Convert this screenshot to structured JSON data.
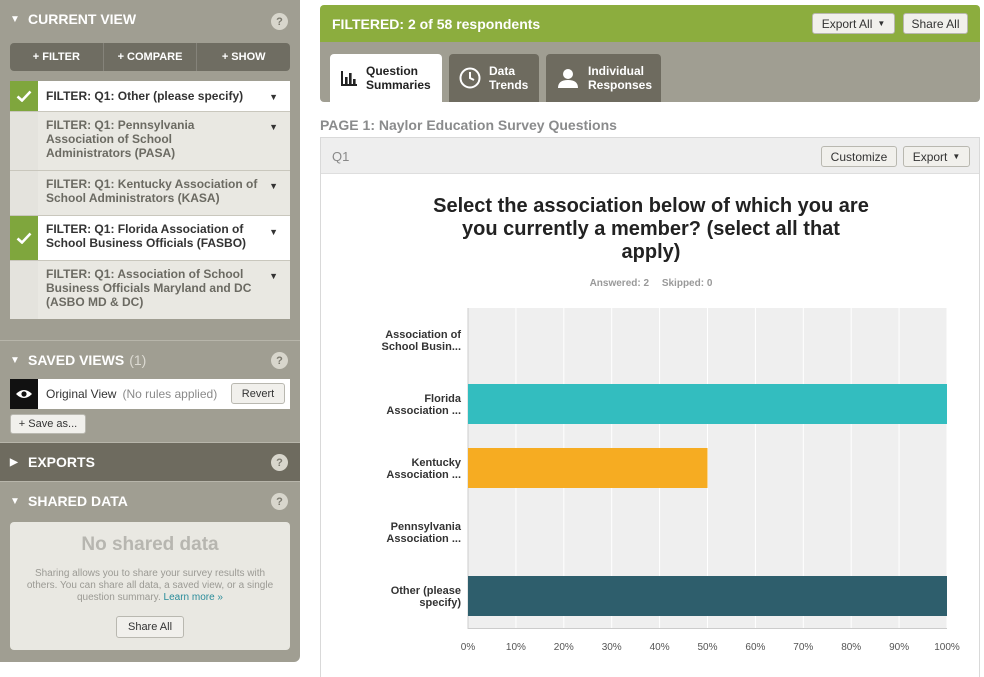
{
  "sidebar": {
    "current_view": {
      "title": "CURRENT VIEW",
      "buttons": [
        "+ FILTER",
        "+ COMPARE",
        "+ SHOW"
      ],
      "filters": [
        {
          "label": "FILTER: Q1: Other (please specify)",
          "active": true
        },
        {
          "label": "FILTER: Q1: Pennsylvania Association of School Administrators (PASA)",
          "active": false
        },
        {
          "label": "FILTER: Q1: Kentucky Association of School Administrators (KASA)",
          "active": false
        },
        {
          "label": "FILTER: Q1: Florida Association of School Business Officials (FASBO)",
          "active": true
        },
        {
          "label": "FILTER: Q1: Association of School Business Officials Maryland and DC (ASBO MD & DC)",
          "active": false
        }
      ]
    },
    "saved_views": {
      "title": "SAVED VIEWS",
      "count": "(1)",
      "view_name": "Original View",
      "view_rule": "(No rules applied)",
      "revert_label": "Revert",
      "save_as_label": "+ Save as..."
    },
    "exports": {
      "title": "EXPORTS"
    },
    "shared_data": {
      "title": "SHARED DATA",
      "empty_title": "No shared data",
      "description": "Sharing allows you to share your survey results with others. You can share all data, a saved view, or a single question summary.",
      "learn_more": "Learn more »",
      "share_all_label": "Share All"
    },
    "help_glyph": "?"
  },
  "topbar": {
    "title": "FILTERED: 2 of 58 respondents",
    "export_all": "Export All",
    "share_all": "Share All"
  },
  "tabs": [
    {
      "label_line1": "Question",
      "label_line2": "Summaries",
      "icon": "bar-chart-icon",
      "active": true
    },
    {
      "label_line1": "Data",
      "label_line2": "Trends",
      "icon": "clock-icon",
      "active": false
    },
    {
      "label_line1": "Individual",
      "label_line2": "Responses",
      "icon": "person-icon",
      "active": false
    }
  ],
  "page_title": "PAGE 1: Naylor Education Survey Questions",
  "question": {
    "number": "Q1",
    "customize": "Customize",
    "export": "Export",
    "title": "Select the association below of which you are you currently a member? (select all that apply)",
    "answered": "Answered: 2",
    "skipped": "Skipped: 0"
  },
  "chart_data": {
    "type": "bar",
    "orientation": "horizontal",
    "categories": [
      [
        "Association of",
        "School Busin..."
      ],
      [
        "Florida",
        "Association ..."
      ],
      [
        "Kentucky",
        "Association ..."
      ],
      [
        "Pennsylvania",
        "Association ..."
      ],
      [
        "Other (please",
        "specify)"
      ]
    ],
    "values": [
      0,
      100,
      50,
      0,
      100
    ],
    "colors": [
      "#33bdbf",
      "#33bdbf",
      "#f6ac22",
      "#33bdbf",
      "#2e5e6c"
    ],
    "xticks": [
      "0%",
      "10%",
      "20%",
      "30%",
      "40%",
      "50%",
      "60%",
      "70%",
      "80%",
      "90%",
      "100%"
    ],
    "xlim": [
      0,
      100
    ],
    "grid": true
  }
}
